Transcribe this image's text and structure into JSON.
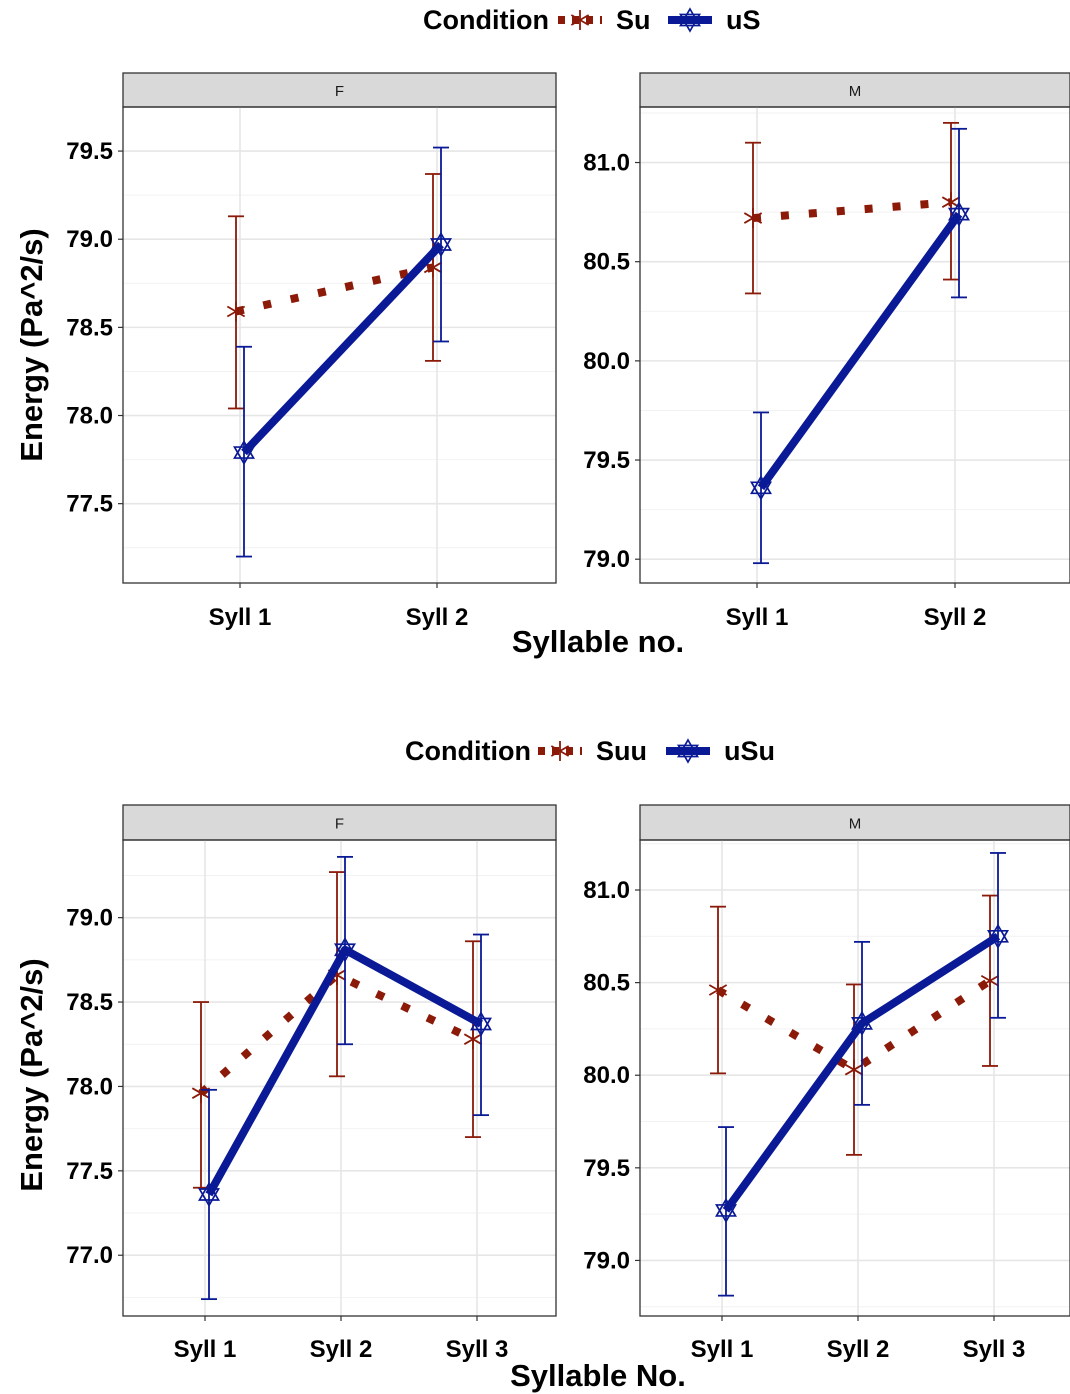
{
  "chart_data": [
    {
      "type": "line",
      "facets": [
        "F",
        "M"
      ],
      "categories": [
        "Syll 1",
        "Syll 2"
      ],
      "xlabel": "Syllable no.",
      "ylabel": "Energy (Pa^2/s)",
      "legend": {
        "title": "Condition",
        "position": "top"
      },
      "series": [
        {
          "name": "Su",
          "color": "#8b1a08",
          "line": "dotted",
          "marker": "asterisk",
          "facet_values": {
            "F": [
              78.59,
              78.84
            ],
            "M": [
              80.72,
              80.8
            ]
          },
          "facet_errors": {
            "F": [
              [
                78.04,
                79.13
              ],
              [
                78.31,
                79.37
              ]
            ],
            "M": [
              [
                80.34,
                81.1
              ],
              [
                80.41,
                81.2
              ]
            ]
          }
        },
        {
          "name": "uS",
          "color": "#0a1a96",
          "line": "solid",
          "marker": "star-of-david",
          "facet_values": {
            "F": [
              77.79,
              78.97
            ],
            "M": [
              79.36,
              80.74
            ]
          },
          "facet_errors": {
            "F": [
              [
                77.2,
                78.39
              ],
              [
                78.42,
                79.52
              ]
            ],
            "M": [
              [
                78.98,
                79.74
              ],
              [
                80.32,
                81.17
              ]
            ]
          }
        }
      ],
      "facet_ylim": {
        "F": [
          77.05,
          79.75
        ],
        "M": [
          78.88,
          81.28
        ]
      },
      "facet_yticks": {
        "F": [
          "77.5",
          "78.0",
          "78.5",
          "79.0",
          "79.5"
        ],
        "M": [
          "79.0",
          "79.5",
          "80.0",
          "80.5",
          "81.0"
        ]
      },
      "grid": true
    },
    {
      "type": "line",
      "facets": [
        "F",
        "M"
      ],
      "categories": [
        "Syll 1",
        "Syll 2",
        "Syll 3"
      ],
      "xlabel": "Syllable No.",
      "ylabel": "Energy (Pa^2/s)",
      "legend": {
        "title": "Condition",
        "position": "top"
      },
      "series": [
        {
          "name": "Suu",
          "color": "#8b1a08",
          "line": "dotted",
          "marker": "asterisk",
          "facet_values": {
            "F": [
              77.96,
              78.66,
              78.28
            ],
            "M": [
              80.46,
              80.03,
              80.51
            ]
          },
          "facet_errors": {
            "F": [
              [
                77.4,
                78.5
              ],
              [
                78.06,
                79.27
              ],
              [
                77.7,
                78.86
              ]
            ],
            "M": [
              [
                80.01,
                80.91
              ],
              [
                79.57,
                80.49
              ],
              [
                80.05,
                80.97
              ]
            ]
          }
        },
        {
          "name": "uSu",
          "color": "#0a1a96",
          "line": "solid",
          "marker": "star-of-david",
          "facet_values": {
            "F": [
              77.36,
              78.81,
              78.37
            ],
            "M": [
              79.27,
              80.28,
              80.75
            ]
          },
          "facet_errors": {
            "F": [
              [
                76.74,
                77.98
              ],
              [
                78.25,
                79.36
              ],
              [
                77.83,
                78.9
              ]
            ],
            "M": [
              [
                78.81,
                79.72
              ],
              [
                79.84,
                80.72
              ],
              [
                80.31,
                81.2
              ]
            ]
          }
        }
      ],
      "facet_ylim": {
        "F": [
          76.64,
          79.46
        ],
        "M": [
          78.7,
          81.27
        ]
      },
      "facet_yticks": {
        "F": [
          "77.0",
          "77.5",
          "78.0",
          "78.5",
          "79.0"
        ],
        "M": [
          "79.0",
          "79.5",
          "80.0",
          "80.5",
          "81.0"
        ]
      },
      "grid": true
    }
  ]
}
